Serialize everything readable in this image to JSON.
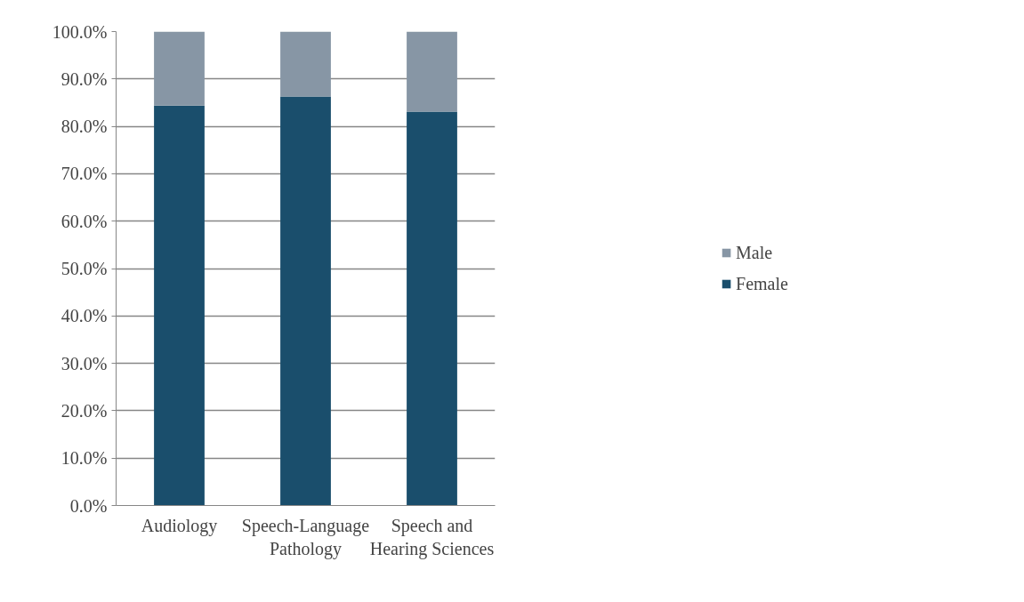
{
  "chart_data": {
    "type": "bar",
    "stacked": true,
    "categories": [
      "Audiology",
      "Speech-Language Pathology",
      "Speech and Hearing Sciences"
    ],
    "series": [
      {
        "name": "Female",
        "color": "#1a4e6c",
        "values": [
          84.4,
          86.3,
          83.1
        ]
      },
      {
        "name": "Male",
        "color": "#8796a5",
        "values": [
          15.6,
          13.7,
          16.9
        ]
      }
    ],
    "ylim": [
      0,
      100
    ],
    "yticks": [
      {
        "value": 0,
        "label": "0.0%"
      },
      {
        "value": 10,
        "label": "10.0%"
      },
      {
        "value": 20,
        "label": "20.0%"
      },
      {
        "value": 30,
        "label": "30.0%"
      },
      {
        "value": 40,
        "label": "40.0%"
      },
      {
        "value": 50,
        "label": "50.0%"
      },
      {
        "value": 60,
        "label": "60.0%"
      },
      {
        "value": 70,
        "label": "70.0%"
      },
      {
        "value": 80,
        "label": "80.0%"
      },
      {
        "value": 90,
        "label": "90.0%"
      },
      {
        "value": 100,
        "label": "100.0%"
      }
    ],
    "grid": "y",
    "legend": "right"
  }
}
